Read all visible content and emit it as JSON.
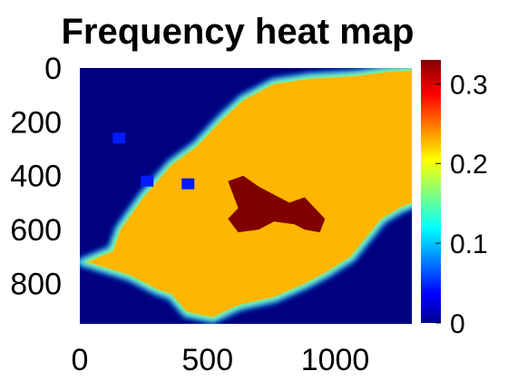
{
  "chart_data": {
    "type": "heatmap",
    "title": "Frequency heat map",
    "xlabel": "",
    "ylabel": "",
    "xlim": [
      0,
      1300
    ],
    "ylim": [
      950,
      0
    ],
    "x_ticks": [
      "0",
      "500",
      "1000"
    ],
    "x_tick_values": [
      0,
      500,
      1000
    ],
    "y_ticks": [
      "0",
      "200",
      "400",
      "600",
      "800"
    ],
    "y_tick_values": [
      0,
      200,
      400,
      600,
      800
    ],
    "colorbar": {
      "colormap": "jet",
      "range": [
        0,
        0.33
      ],
      "ticks": [
        "0",
        "0.1",
        "0.2",
        "0.3"
      ],
      "tick_values": [
        0,
        0.1,
        0.2,
        0.3
      ]
    },
    "background_value": 0,
    "regions": [
      {
        "value": 0.23,
        "polygon": [
          [
            30,
            720
          ],
          [
            130,
            680
          ],
          [
            160,
            600
          ],
          [
            250,
            480
          ],
          [
            360,
            360
          ],
          [
            460,
            290
          ],
          [
            560,
            190
          ],
          [
            640,
            120
          ],
          [
            760,
            60
          ],
          [
            900,
            40
          ],
          [
            1080,
            30
          ],
          [
            1200,
            15
          ],
          [
            1300,
            10
          ],
          [
            1300,
            500
          ],
          [
            1250,
            520
          ],
          [
            1180,
            560
          ],
          [
            1060,
            700
          ],
          [
            960,
            760
          ],
          [
            880,
            800
          ],
          [
            760,
            850
          ],
          [
            620,
            880
          ],
          [
            520,
            925
          ],
          [
            420,
            905
          ],
          [
            360,
            840
          ],
          [
            300,
            820
          ],
          [
            200,
            770
          ]
        ]
      },
      {
        "value": 0.33,
        "polygon": [
          [
            580,
            420
          ],
          [
            640,
            400
          ],
          [
            700,
            440
          ],
          [
            760,
            470
          ],
          [
            820,
            500
          ],
          [
            880,
            480
          ],
          [
            960,
            560
          ],
          [
            940,
            610
          ],
          [
            880,
            600
          ],
          [
            840,
            580
          ],
          [
            760,
            570
          ],
          [
            700,
            600
          ],
          [
            620,
            610
          ],
          [
            580,
            560
          ],
          [
            620,
            520
          ]
        ]
      }
    ],
    "outlier_points": [
      {
        "x": 150,
        "y": 260,
        "value": 0.05
      },
      {
        "x": 260,
        "y": 420,
        "value": 0.05
      },
      {
        "x": 420,
        "y": 430,
        "value": 0.05
      }
    ]
  }
}
